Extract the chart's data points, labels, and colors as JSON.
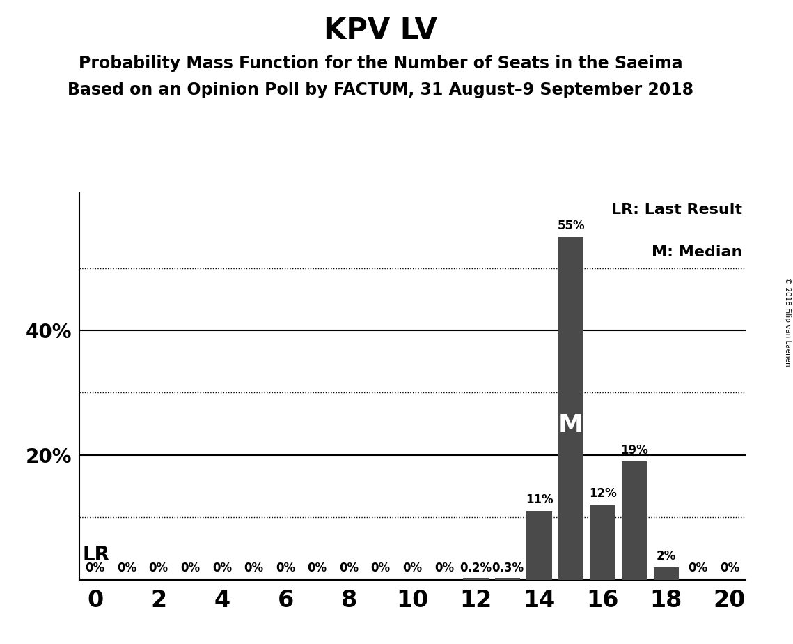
{
  "title": "KPV LV",
  "subtitle1": "Probability Mass Function for the Number of Seats in the Saeima",
  "subtitle2": "Based on an Opinion Poll by FACTUM, 31 August–9 September 2018",
  "copyright": "© 2018 Filip van Laenen",
  "seats": [
    0,
    1,
    2,
    3,
    4,
    5,
    6,
    7,
    8,
    9,
    10,
    11,
    12,
    13,
    14,
    15,
    16,
    17,
    18,
    19,
    20
  ],
  "probabilities": [
    0,
    0,
    0,
    0,
    0,
    0,
    0,
    0,
    0,
    0,
    0,
    0,
    0.2,
    0.3,
    11,
    55,
    12,
    19,
    2,
    0,
    0
  ],
  "bar_color": "#4a4a4a",
  "bar_labels": [
    "0%",
    "0%",
    "0%",
    "0%",
    "0%",
    "0%",
    "0%",
    "0%",
    "0%",
    "0%",
    "0%",
    "0%",
    "0.2%",
    "0.3%",
    "11%",
    "55%",
    "12%",
    "19%",
    "2%",
    "0%",
    "0%"
  ],
  "median_seat": 15,
  "xlim": [
    -0.5,
    20.5
  ],
  "ylim": [
    0,
    62
  ],
  "yticks": [
    0,
    10,
    20,
    30,
    40,
    50,
    60
  ],
  "ytick_labels": [
    "",
    "",
    "20%",
    "",
    "40%",
    "",
    ""
  ],
  "solid_gridlines": [
    20,
    40
  ],
  "dotted_gridlines": [
    10,
    30,
    50
  ],
  "background_color": "#ffffff",
  "title_fontsize": 30,
  "subtitle_fontsize": 17,
  "legend_fontsize": 16,
  "bar_label_fontsize": 12,
  "median_label_fontsize": 26,
  "lr_label_fontsize": 20,
  "ytick_fontsize": 20,
  "xtick_fontsize": 24
}
